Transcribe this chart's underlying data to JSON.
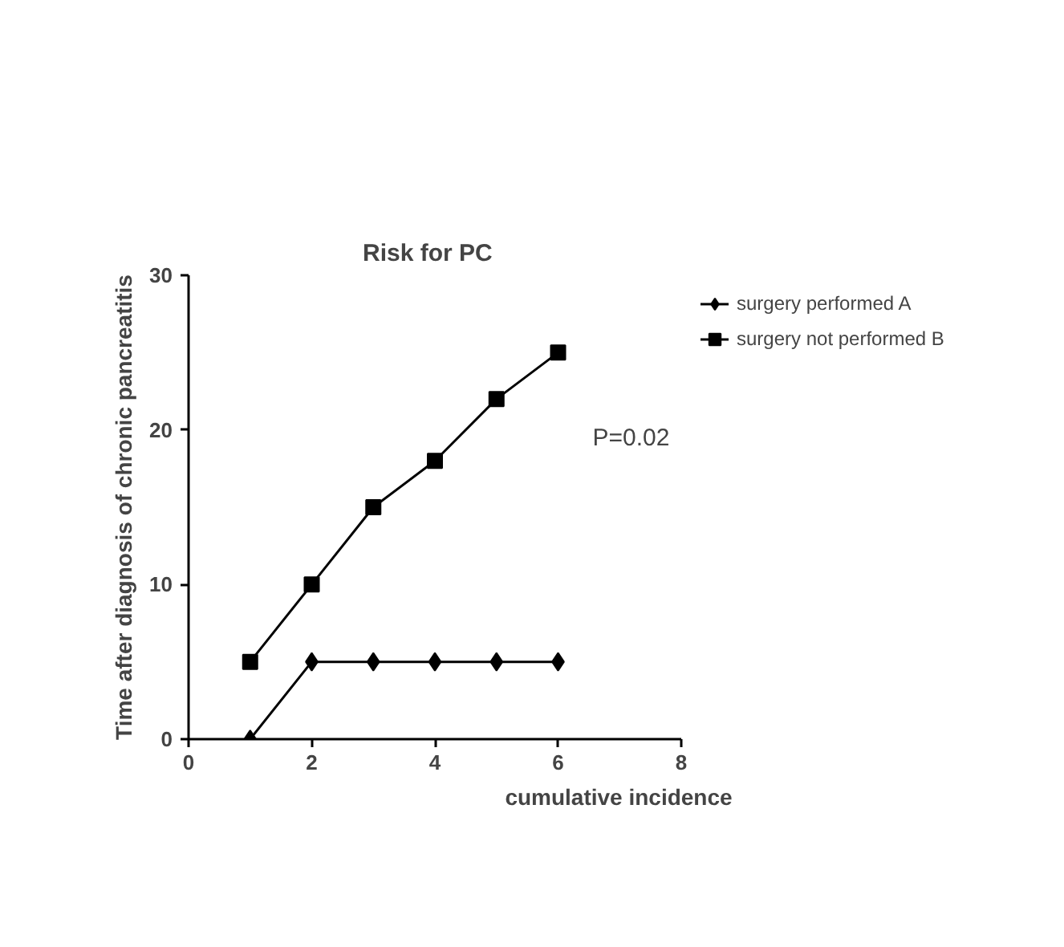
{
  "chart_data": {
    "type": "line",
    "title": "Risk for PC",
    "xlabel": "cumulative incidence",
    "ylabel": "Time after diagnosis of chronic pancreatitis",
    "x": [
      1,
      2,
      3,
      4,
      5,
      6
    ],
    "series": [
      {
        "name": "surgery performed A",
        "color": "#000000",
        "values": [
          0,
          5,
          5,
          5,
          5,
          5
        ],
        "marker": "diamond"
      },
      {
        "name": "surgery not performed B",
        "color": "#000000",
        "values": [
          5,
          10,
          15,
          18,
          22,
          25
        ],
        "marker": "square"
      }
    ],
    "xlim": [
      0,
      8
    ],
    "xticks": [
      0,
      2,
      4,
      6,
      8
    ],
    "ylim": [
      0,
      30
    ],
    "yticks": [
      0,
      10,
      20,
      30
    ],
    "grid": false,
    "legend": "top right",
    "line_style": "solid",
    "annotations": [
      "P=0.02"
    ]
  }
}
